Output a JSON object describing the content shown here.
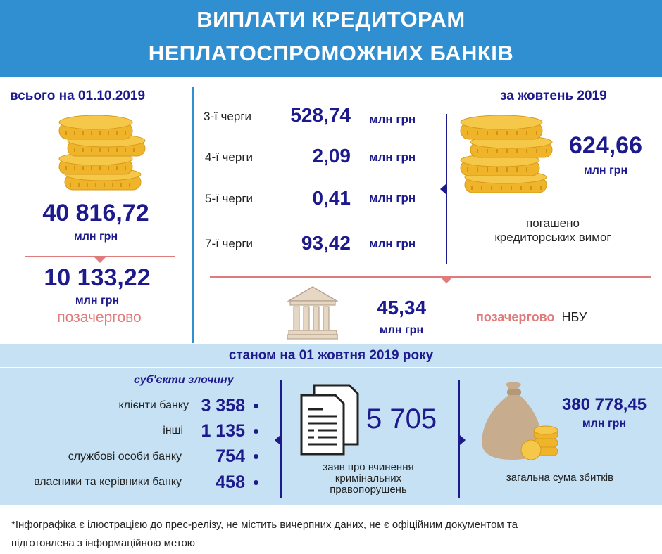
{
  "header": {
    "title_line1": "ВИПЛАТИ КРЕДИТОРАМ",
    "title_line2": "НЕПЛАТОСПРОМОЖНИХ БАНКІВ"
  },
  "left": {
    "heading": "всього на 01.10.2019",
    "total_value": "40 816,72",
    "total_unit": "млн грн",
    "priority_value": "10 133,22",
    "priority_unit": "млн грн",
    "priority_label": "позачергово"
  },
  "queues": [
    {
      "label": "3-ї черги",
      "value": "528,74",
      "unit": "млн грн"
    },
    {
      "label": "4-ї черги",
      "value": "2,09",
      "unit": "млн грн"
    },
    {
      "label": "5-ї черги",
      "value": "0,41",
      "unit": "млн грн"
    },
    {
      "label": "7-ї черги",
      "value": "93,42",
      "unit": "млн грн"
    }
  ],
  "october": {
    "heading": "за жовтень 2019",
    "value": "624,66",
    "unit": "млн грн",
    "caption_line1": "погашено",
    "caption_line2": "кредиторських вимог"
  },
  "nbu": {
    "value": "45,34",
    "unit": "млн грн",
    "label_priority": "позачергово",
    "label_bank": "НБУ"
  },
  "band": {
    "title": "станом на 01 жовтня 2019 року",
    "subjects_heading": "суб'єкти злочину",
    "subjects": [
      {
        "label": "клієнти банку",
        "value": "3 358"
      },
      {
        "label": "інші",
        "value": "1 135"
      },
      {
        "label": "службові особи банку",
        "value": "754"
      },
      {
        "label": "власники та керівники банку",
        "value": "458"
      }
    ],
    "applications_value": "5 705",
    "applications_caption_line1": "заяв про вчинення",
    "applications_caption_line2": "кримінальних",
    "applications_caption_line3": "правопорушень",
    "losses_value": "380 778,45",
    "losses_unit": "млн грн",
    "losses_caption": "загальна сума збитків"
  },
  "footnote": {
    "line1": "*Інфографіка є ілюстрацією до прес-релізу, не містить вичерпних даних, не є офіційним документом та",
    "line2": "підготовлена з інформаційною метою"
  },
  "colors": {
    "header_blue": "#2f8fd1",
    "navy": "#1d1a8e",
    "accent_red": "#e07b7b",
    "band_bg": "#c5e1f3",
    "coin_gold": "#f0b42a"
  }
}
